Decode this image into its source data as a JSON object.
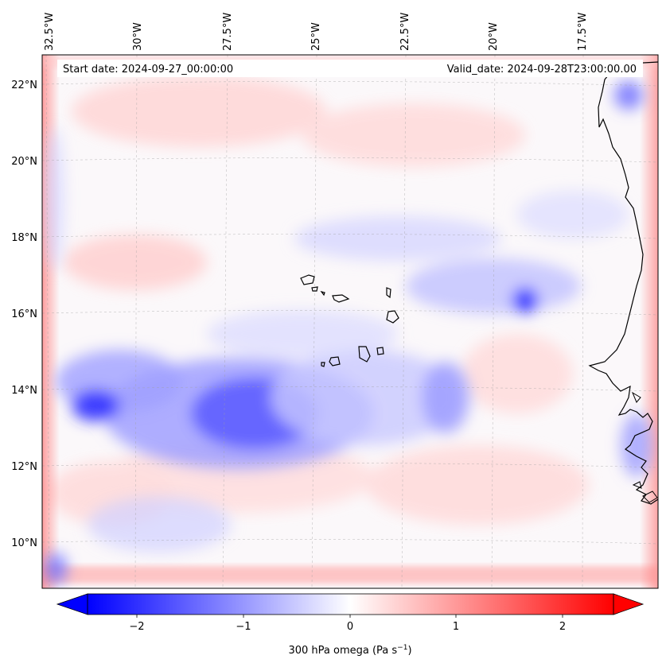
{
  "header": {
    "start_date": "Start date: 2024-09-27_00:00:00",
    "valid_date": "Valid_date: 2024-09-28T23:00:00.00"
  },
  "map": {
    "top_longitude_labels": [
      "32.5°W",
      "30°W",
      "27.5°W",
      "25°W",
      "22.5°W",
      "20°W",
      "17.5°W"
    ],
    "left_latitude_labels": [
      "22°N",
      "20°N",
      "18°N",
      "16°N",
      "14°N",
      "12°N",
      "10°N"
    ],
    "field_colors": {
      "negative": "#0000ff",
      "zero": "#ffffff",
      "positive": "#ff0000"
    },
    "coastline_color": "#000000",
    "gridlines": true
  },
  "colorbar": {
    "ticks": [
      "−2",
      "−1",
      "0",
      "1",
      "2"
    ],
    "label": "300 hPa omega (Pa s",
    "label_sup": "−1",
    "label_end": ")",
    "range": [
      -2.6,
      2.6
    ],
    "extend": "both"
  }
}
